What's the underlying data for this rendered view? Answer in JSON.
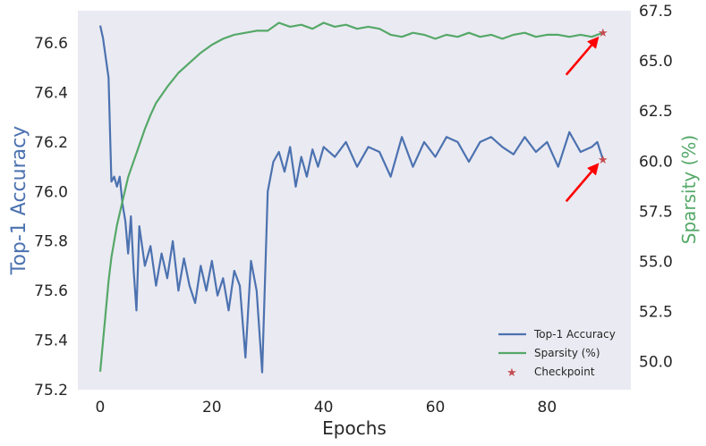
{
  "colors": {
    "plot_background": "#eaeaf2",
    "accuracy": "#4c72b0",
    "sparsity": "#55a868",
    "checkpoint": "#c44e52",
    "arrow": "#ff0000",
    "text": "#262626"
  },
  "chart_data": {
    "type": "line",
    "xlabel": "Epochs",
    "ylabel_left": "Top-1 Accuracy",
    "ylabel_right": "Sparsity (%)",
    "xlim": [
      -4,
      95
    ],
    "ylim_left": [
      75.2,
      76.73
    ],
    "ylim_right": [
      48.6,
      67.5
    ],
    "xticks": [
      0,
      20,
      40,
      60,
      80
    ],
    "yticks_left": [
      75.2,
      75.4,
      75.6,
      75.8,
      76.0,
      76.2,
      76.4,
      76.6
    ],
    "yticks_left_labels": [
      "75.2",
      "75.4",
      "75.6",
      "75.8",
      "76.0",
      "76.2",
      "76.4",
      "76.6"
    ],
    "yticks_right": [
      50.0,
      52.5,
      55.0,
      57.5,
      60.0,
      62.5,
      65.0,
      67.5
    ],
    "yticks_right_labels": [
      "50.0",
      "52.5",
      "55.0",
      "57.5",
      "60.0",
      "62.5",
      "65.0",
      "67.5"
    ],
    "grid": false,
    "legend_position": "lower-right",
    "legend": [
      "Top-1 Accuracy",
      "Sparsity (%)",
      "Checkpoint"
    ],
    "series": [
      {
        "name": "Top-1 Accuracy",
        "axis": "left",
        "x": [
          0,
          0.5,
          1,
          1.5,
          2,
          2.5,
          3,
          3.5,
          4,
          4.5,
          5,
          5.5,
          6,
          6.5,
          7,
          8,
          9,
          10,
          11,
          12,
          13,
          14,
          15,
          16,
          17,
          18,
          19,
          20,
          21,
          22,
          23,
          24,
          25,
          26,
          27,
          28,
          29,
          30,
          31,
          32,
          33,
          34,
          35,
          36,
          37,
          38,
          39,
          40,
          42,
          44,
          46,
          48,
          50,
          52,
          54,
          56,
          58,
          60,
          62,
          64,
          66,
          68,
          70,
          72,
          74,
          76,
          78,
          80,
          82,
          84,
          86,
          88,
          89,
          90
        ],
        "y": [
          76.67,
          76.62,
          76.54,
          76.46,
          76.04,
          76.06,
          76.02,
          76.06,
          75.95,
          75.88,
          75.75,
          75.9,
          75.68,
          75.52,
          75.86,
          75.7,
          75.78,
          75.62,
          75.75,
          75.65,
          75.8,
          75.6,
          75.73,
          75.62,
          75.55,
          75.7,
          75.6,
          75.72,
          75.58,
          75.65,
          75.52,
          75.68,
          75.62,
          75.33,
          75.72,
          75.6,
          75.27,
          76.0,
          76.12,
          76.16,
          76.08,
          76.18,
          76.02,
          76.14,
          76.06,
          76.17,
          76.1,
          76.18,
          76.14,
          76.2,
          76.1,
          76.18,
          76.16,
          76.06,
          76.22,
          76.1,
          76.2,
          76.14,
          76.22,
          76.2,
          76.12,
          76.2,
          76.22,
          76.18,
          76.15,
          76.22,
          76.16,
          76.2,
          76.1,
          76.24,
          76.16,
          76.18,
          76.2,
          76.13
        ]
      },
      {
        "name": "Sparsity (%)",
        "axis": "right",
        "x": [
          0,
          0.5,
          1,
          1.5,
          2,
          3,
          4,
          5,
          6,
          7,
          8,
          9,
          10,
          12,
          14,
          16,
          18,
          20,
          22,
          24,
          26,
          28,
          30,
          32,
          34,
          36,
          38,
          40,
          42,
          44,
          46,
          48,
          50,
          52,
          54,
          56,
          58,
          60,
          62,
          64,
          66,
          68,
          70,
          72,
          74,
          76,
          78,
          80,
          82,
          84,
          86,
          88,
          90
        ],
        "y": [
          49.5,
          51.0,
          52.5,
          54.0,
          55.2,
          56.8,
          58.0,
          59.2,
          60.0,
          60.8,
          61.6,
          62.3,
          62.9,
          63.7,
          64.4,
          64.9,
          65.4,
          65.8,
          66.1,
          66.3,
          66.4,
          66.5,
          66.5,
          66.9,
          66.7,
          66.8,
          66.6,
          66.9,
          66.7,
          66.8,
          66.6,
          66.7,
          66.6,
          66.3,
          66.2,
          66.4,
          66.3,
          66.1,
          66.3,
          66.2,
          66.4,
          66.2,
          66.3,
          66.1,
          66.3,
          66.4,
          66.2,
          66.3,
          66.3,
          66.2,
          66.3,
          66.2,
          66.4
        ]
      }
    ],
    "checkpoints": [
      {
        "x": 90,
        "y": 76.13,
        "axis": "left"
      },
      {
        "x": 90,
        "y": 66.4,
        "axis": "right"
      }
    ]
  }
}
